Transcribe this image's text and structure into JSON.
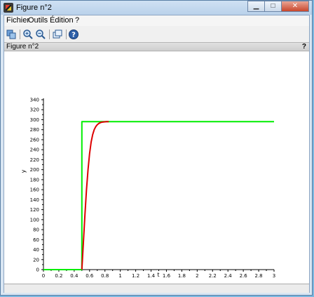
{
  "window": {
    "title": "Figure n°2"
  },
  "menu": {
    "items": [
      "Fichier",
      "Outils",
      "Édition",
      "?"
    ]
  },
  "toolbar": {
    "tools": [
      {
        "name": "rotate-icon",
        "color": "#3b6fb0"
      },
      {
        "name": "zoom-in-icon",
        "color": "#3b6fb0"
      },
      {
        "name": "zoom-out-icon",
        "color": "#3b6fb0"
      },
      {
        "name": "window-icon",
        "color": "#3b6fb0"
      },
      {
        "name": "help-icon",
        "color": "#2d5fa8"
      }
    ]
  },
  "panel": {
    "title": "Figure n°2",
    "help": "?"
  },
  "chart_data": {
    "type": "line",
    "xlabel": "t",
    "ylabel": "y",
    "xlim": [
      0,
      3
    ],
    "ylim": [
      0,
      340
    ],
    "x_ticks": [
      0,
      0.2,
      0.4,
      0.6,
      0.8,
      1,
      1.2,
      1.4,
      1.6,
      1.8,
      2,
      2.2,
      2.4,
      2.6,
      2.8,
      3
    ],
    "x_tick_labels": [
      "0",
      "0.2",
      "0.4",
      "0.6",
      "0.8",
      "1",
      "1.2",
      "1.4",
      "1.6",
      "1.8",
      "2",
      "2.2",
      "2.4",
      "2.6",
      "2.8",
      "3"
    ],
    "y_ticks": [
      0,
      20,
      40,
      60,
      80,
      100,
      120,
      140,
      160,
      180,
      200,
      220,
      240,
      260,
      280,
      300,
      320,
      340
    ],
    "y_tick_labels": [
      "0",
      "20",
      "40",
      "60",
      "80",
      "100",
      "120",
      "140",
      "160",
      "180",
      "200",
      "220",
      "240",
      "260",
      "280",
      "300",
      "320",
      "340"
    ],
    "grid": false,
    "series": [
      {
        "color": "#00ee00",
        "x": [
          0,
          0.5,
          0.5,
          3
        ],
        "y": [
          0,
          0,
          296,
          296
        ]
      },
      {
        "color": "#dd0000",
        "x": [
          0.5,
          0.52,
          0.54,
          0.56,
          0.58,
          0.6,
          0.62,
          0.64,
          0.66,
          0.68,
          0.7,
          0.72,
          0.74,
          0.76,
          0.78,
          0.8,
          0.82,
          0.85
        ],
        "y": [
          0,
          55,
          110,
          160,
          200,
          232,
          255,
          270,
          280,
          286,
          290,
          292.5,
          294,
          295,
          295.5,
          295.8,
          296,
          296
        ]
      }
    ]
  }
}
